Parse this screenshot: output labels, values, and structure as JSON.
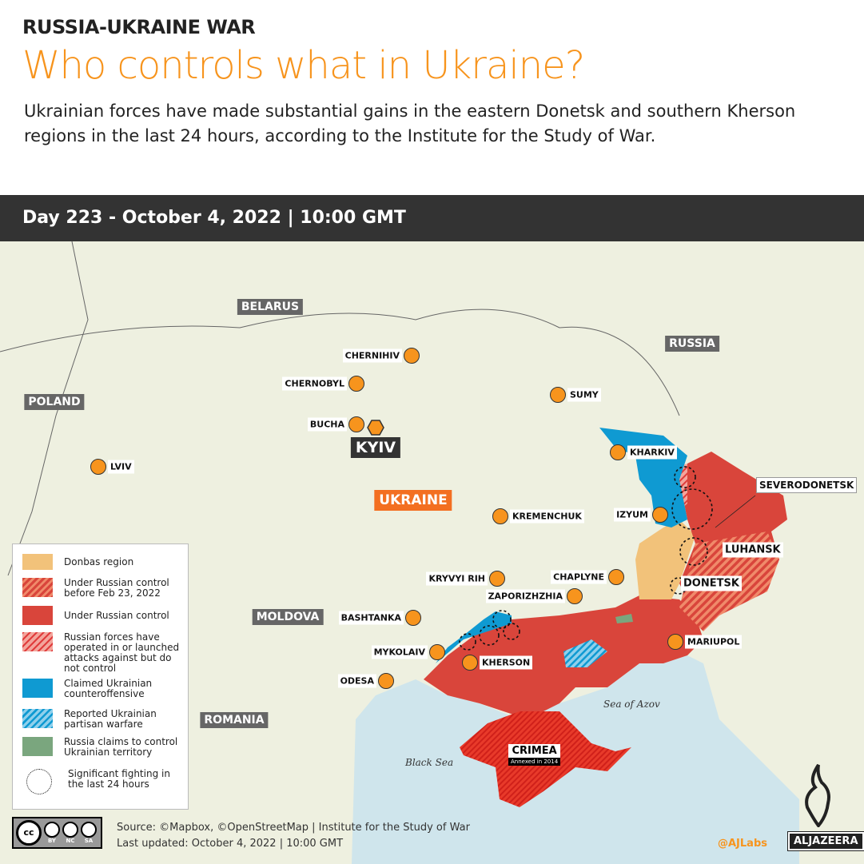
{
  "header": {
    "kicker": "RUSSIA-UKRAINE WAR",
    "title": "Who controls what in Ukraine?",
    "subtitle": "Ukrainian forces have made substantial gains in the eastern Donetsk and southern Kherson regions in the last 24 hours, according to the Institute for the Study of War.",
    "date_bar": "Day 223 - October 4, 2022 | 10:00 GMT"
  },
  "colors": {
    "accent": "#f7941d",
    "russian_control": "#d9453b",
    "ukrainian_counteroffensive": "#0f9ad2",
    "donbas": "#f2c27a",
    "russia_claims": "#7aa67e",
    "land": "#eef0e0",
    "sea": "#cfe5ec"
  },
  "countries": {
    "belarus": "BELARUS",
    "russia": "RUSSIA",
    "poland": "POLAND",
    "moldova": "MOLDOVA",
    "romania": "ROMANIA",
    "ukraine": "UKRAINE"
  },
  "capital": {
    "name": "KYIV",
    "icon": "hexagon-capital-icon"
  },
  "cities": [
    "CHERNIHIV",
    "CHERNOBYL",
    "SUMY",
    "BUCHA",
    "LVIV",
    "KHARKIV",
    "IZYUM",
    "KREMENCHUK",
    "KRYVYI RIH",
    "CHAPLYNE",
    "ZAPORIZHZHIA",
    "BASHTANKA",
    "MYKOLAIV",
    "KHERSON",
    "ODESA",
    "MARIUPOL"
  ],
  "regions": {
    "severodonetsk": "SEVERODONETSK",
    "luhansk": "LUHANSK",
    "donetsk": "DONETSK",
    "crimea": "CRIMEA",
    "crimea_note": "Annexed in 2014"
  },
  "seas": {
    "azov": "Sea of Azov",
    "black": "Black Sea"
  },
  "legend": [
    "Donbas region",
    "Under Russian control before Feb 23, 2022",
    "Under Russian control",
    "Russian forces have operated in or launched attacks against but do not control",
    "Claimed Ukrainian counteroffensive",
    "Reported Ukrainian partisan warfare",
    "Russia claims to control Ukrainian territory",
    "Significant fighting in the last 24 hours"
  ],
  "footer": {
    "source": "Source: ©Mapbox, ©OpenStreetMap  |  Institute for the Study of War",
    "updated": "Last updated: October 4, 2022  |  10:00 GMT",
    "handle": "@AJLabs",
    "brand": "ALJAZEERA",
    "license": [
      "BY",
      "NC",
      "SA"
    ]
  }
}
